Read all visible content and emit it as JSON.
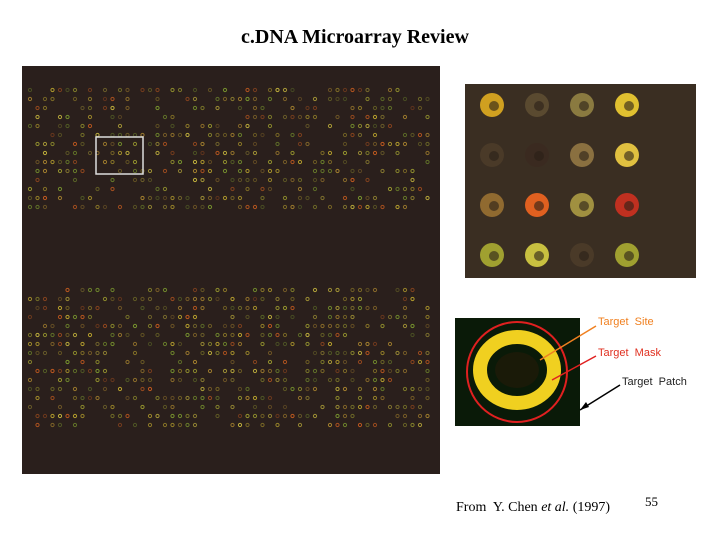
{
  "header": {
    "title": "c.DNA Microarray Review"
  },
  "labels": {
    "site": "Target  Site",
    "mask": "Target  Mask",
    "patch": "Target  Patch"
  },
  "citation": {
    "before": "From  Y. Chen ",
    "italic": "et al.",
    "after": " (1997)"
  },
  "page_number": "55"
}
